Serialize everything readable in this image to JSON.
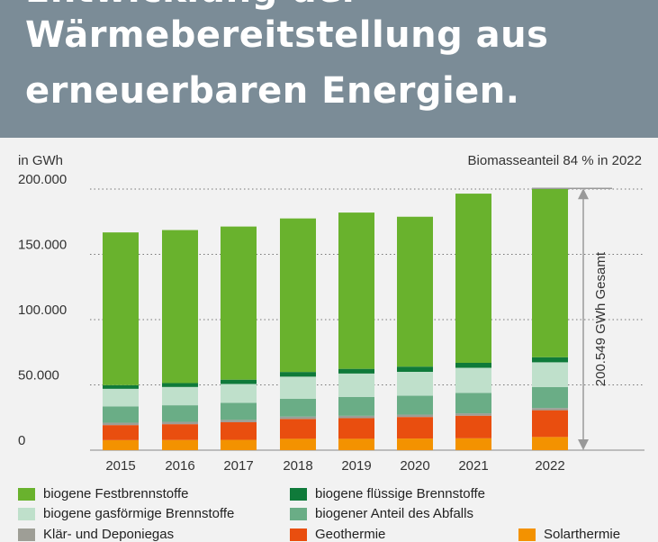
{
  "header": {
    "line0": "Entwicklung der",
    "line1": "Wärmebereitstellung aus",
    "line2": "erneuerbaren Energien."
  },
  "unit_label": "in GWh",
  "note": "Biomasseanteil 84 % in 2022",
  "total_annotation": "200.549 GWh Gesamt",
  "chart_data": {
    "type": "bar",
    "stacked": true,
    "categories": [
      "2015",
      "2016",
      "2017",
      "2018",
      "2019",
      "2020",
      "2021",
      "2022"
    ],
    "ylim": [
      0,
      200000
    ],
    "yticks": [
      0,
      50000,
      100000,
      150000,
      200000
    ],
    "ytick_labels": [
      "0",
      "50.000",
      "100.000",
      "150.000",
      "200.000"
    ],
    "ylabel": "in GWh",
    "grid": true,
    "legend_position": "bottom",
    "series": [
      {
        "name": "Solarthermie",
        "color": "#f39200",
        "values": [
          7700,
          7800,
          7900,
          8700,
          8700,
          8900,
          9100,
          10100
        ]
      },
      {
        "name": "Geothermie",
        "color": "#e94e0f",
        "values": [
          11500,
          12100,
          13500,
          15200,
          15800,
          16500,
          17300,
          20500
        ]
      },
      {
        "name": "Klär- und Deponiegas",
        "color": "#9e9e96",
        "values": [
          1800,
          1800,
          1800,
          1800,
          1800,
          1800,
          1800,
          1700
        ]
      },
      {
        "name": "biogener Anteil des Abfalls",
        "color": "#6aad86",
        "values": [
          12500,
          12700,
          13000,
          13600,
          14400,
          14500,
          15600,
          16000
        ]
      },
      {
        "name": "biogene gasförmige Brennstoffe",
        "color": "#bfe0cb",
        "values": [
          13500,
          14000,
          14500,
          17000,
          18000,
          18300,
          19300,
          19000
        ]
      },
      {
        "name": "biogene flüssige Brennstoffe",
        "color": "#0f7a3a",
        "values": [
          2800,
          3000,
          3300,
          3600,
          3600,
          4000,
          3800,
          3900
        ]
      },
      {
        "name": "biogene Festbrennstoffe",
        "color": "#69b22d",
        "values": [
          117000,
          117200,
          117300,
          117600,
          119700,
          114800,
          129600,
          129349
        ]
      }
    ],
    "annotation": {
      "year": "2022",
      "total": 200549,
      "text": "200.549 GWh Gesamt"
    }
  },
  "legend": [
    {
      "label": "biogene Festbrennstoffe",
      "color": "#69b22d"
    },
    {
      "label": "biogene flüssige Brennstoffe",
      "color": "#0f7a3a"
    },
    {
      "label": "biogene gasförmige Brennstoffe",
      "color": "#bfe0cb"
    },
    {
      "label": "biogener Anteil des Abfalls",
      "color": "#6aad86"
    },
    {
      "label": "Klär- und Deponiegas",
      "color": "#9e9e96"
    },
    {
      "label": "Geothermie",
      "color": "#e94e0f"
    },
    {
      "label": "Solarthermie",
      "color": "#f39200"
    }
  ]
}
